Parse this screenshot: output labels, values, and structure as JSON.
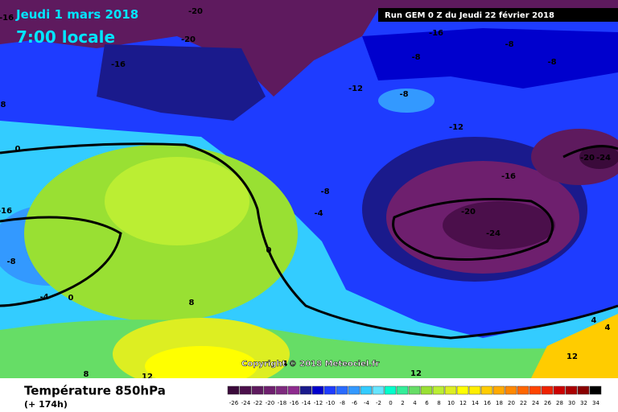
{
  "header": {
    "date": "Jeudi 1 mars 2018",
    "time": "7:00 locale",
    "run": "Run GEM 0 Z du Jeudi 22 février 2018"
  },
  "copyright": "Copyright © 2018 Meteociel.fr",
  "footer": {
    "title": "Température 850hPa",
    "lead": "(+ 174h)"
  },
  "map_labels": [
    "-16",
    "-20",
    "-20",
    "-16",
    "-16",
    "-8",
    "-8",
    "-8",
    "-12",
    "-8",
    "-12",
    "8",
    "0",
    "-8",
    "-4",
    "-16",
    "-20",
    "-24",
    "-20",
    "-24",
    "-16",
    "-8",
    "0",
    "-4",
    "0",
    "8",
    "4",
    "4",
    "4",
    "12",
    "12",
    "8",
    "12"
  ],
  "color_scale": {
    "values": [
      -26,
      -24,
      -22,
      -20,
      -18,
      -16,
      -14,
      -12,
      -10,
      -8,
      -6,
      -4,
      -2,
      0,
      2,
      4,
      6,
      8,
      10,
      12,
      14,
      16,
      18,
      20,
      22,
      24,
      26,
      28,
      30,
      32,
      34
    ],
    "colors": [
      "#3a0a3a",
      "#4b0f4b",
      "#5e1a5e",
      "#6e1f6e",
      "#7e2a7e",
      "#8e2b8e",
      "#1a1a8c",
      "#0000cd",
      "#1e3cff",
      "#2a6bff",
      "#3399ff",
      "#33ccff",
      "#66e5ff",
      "#00ffcc",
      "#33ee99",
      "#66dd66",
      "#99e033",
      "#bbee33",
      "#ddee22",
      "#ffff00",
      "#ffee00",
      "#ffcc00",
      "#ffaa00",
      "#ff8800",
      "#ff6600",
      "#ff4400",
      "#ee2200",
      "#cc0000",
      "#aa0000",
      "#880000",
      "#000000"
    ]
  }
}
